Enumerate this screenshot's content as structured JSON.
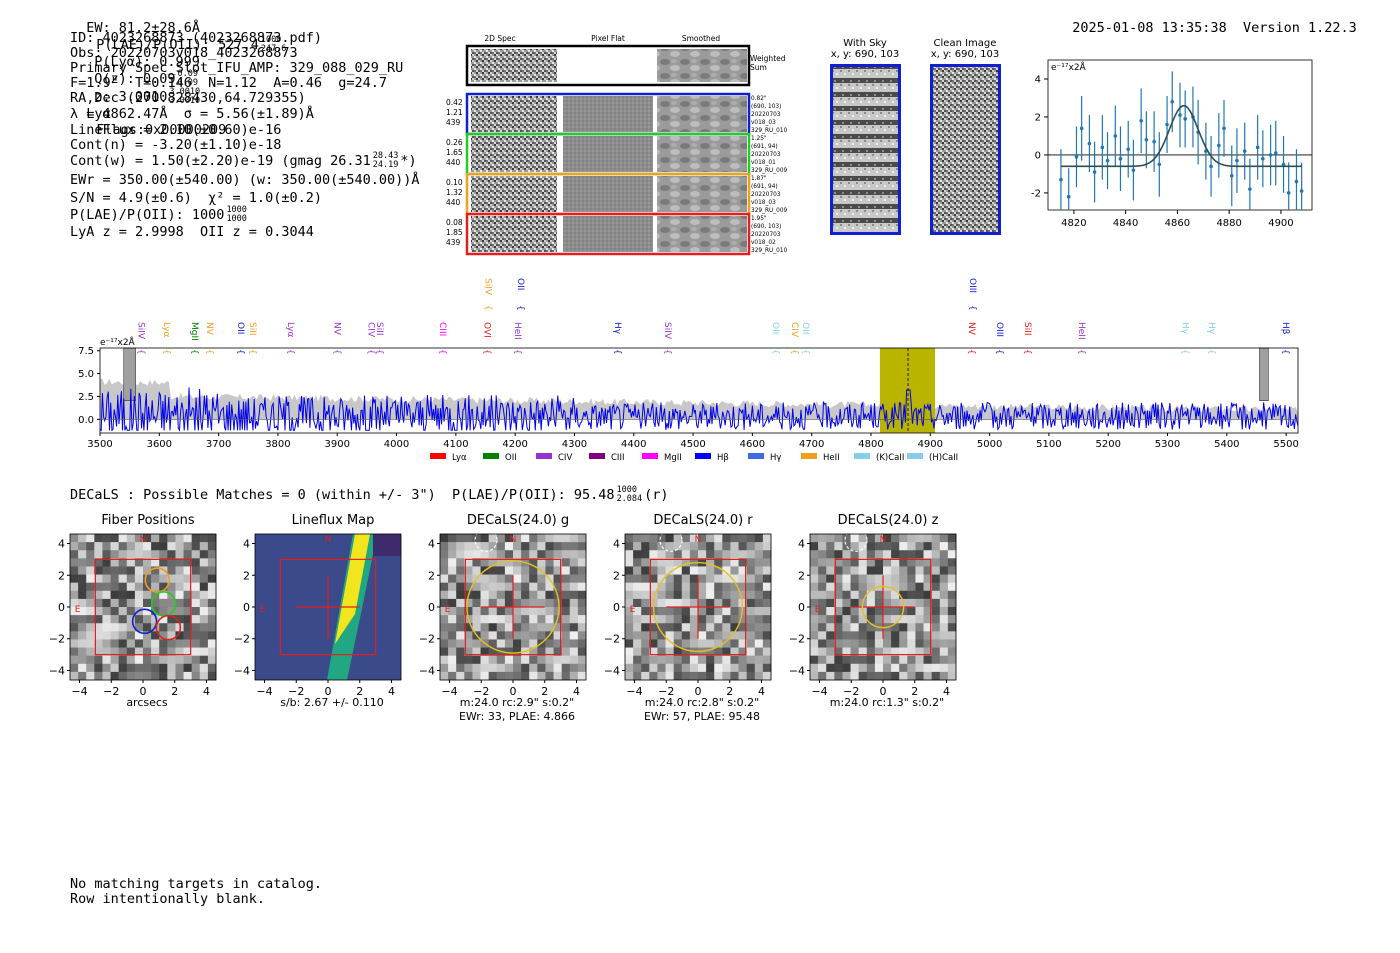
{
  "header": {
    "ew": "EW: 81.2±28.6Å",
    "plae_label": "P(LAE)/P(OII): 527.4",
    "plae_hi": "1000",
    "plae_lo": "247.6",
    "plya": "P(Lyα): 0.999",
    "qz_label": "Q(z): 0.09",
    "qz_hi": "0.09",
    "qz_lo": "0.09",
    "z_label": "z: 3.0010",
    "z_hi": "3.0010",
    "z_lo": "3.0010",
    "line_name": "Lyα",
    "flags": "Flags:0x00000209",
    "datetime": "2025-01-08 13:35:38",
    "version": "Version 1.22.3"
  },
  "info": {
    "id": "ID: 4023268873 (4023268873.pdf)",
    "obs": "Obs: 20220703v018_4023268873",
    "primary": "Primary Spec_Slot_IFU_AMP: 329_088_029_RU",
    "params": "F=1.9\"  T=0.146  N=1.12  A=0.46  g=24.7",
    "radec": "RA,Dec (270.828430,64.729355)",
    "lambda": "λ = 4862.47Å  σ = 5.56(±1.89)Å",
    "lineflux": "LineFlux = 2.10(±0.60)e-16",
    "contn": "Cont(n) = -3.20(±1.10)e-18",
    "contw_label": "Cont(w) = 1.50(±2.20)e-19 (gmag 26.31",
    "contw_hi": "28.43",
    "contw_lo": "24.19",
    "contw_end": "*)",
    "ewr": "EWr = 350.00(±540.00) (w: 350.00(±540.00))Å",
    "sn": "S/N = 4.9(±0.6)  χ² = 1.0(±0.2)",
    "plae_label": "P(LAE)/P(OII): 1000",
    "plae_hi": "1000",
    "plae_lo": "1000",
    "lyaz": "LyA z = 2.9998  OII z = 0.3044"
  },
  "cutouts": {
    "col_titles": [
      "2D Spec",
      "Pixel Flat",
      "Smoothed"
    ],
    "weighted_sum": [
      "Weighted",
      "Sum"
    ],
    "rows": [
      {
        "color": "#1020d0",
        "left": [
          "0.42",
          "1.21",
          "439"
        ],
        "right": [
          "0.82\"",
          "(690, 103)",
          "20220703",
          "v018_03",
          "329_RU_010"
        ]
      },
      {
        "color": "#22cc22",
        "left": [
          "0.26",
          "1.65",
          "440"
        ],
        "right": [
          "1.25\"",
          "(691, 94)",
          "20220703",
          "v018_01",
          "329_RU_009"
        ]
      },
      {
        "color": "#f0a020",
        "left": [
          "0.10",
          "1.32",
          "440"
        ],
        "right": [
          "1.87\"",
          "(691, 94)",
          "20220703",
          "v018_03",
          "329_RU_009"
        ]
      },
      {
        "color": "#e02020",
        "left": [
          "0.08",
          "1.85",
          "439"
        ],
        "right": [
          "1.95\"",
          "(690, 103)",
          "20220703",
          "v018_02",
          "329_RU_010"
        ]
      }
    ],
    "with_sky_title": "With Sky",
    "with_sky_xy": "x, y: 690, 103",
    "clean_title": "Clean Image",
    "clean_xy": "x, y: 690, 103"
  },
  "chart_data": [
    {
      "type": "scatter",
      "name": "line-fit-zoom",
      "unit_label": "e⁻¹⁷x2Å",
      "xlim": [
        4810,
        4912
      ],
      "ylim": [
        -2.9,
        5.0
      ],
      "xticks": [
        4820,
        4840,
        4860,
        4880,
        4900
      ],
      "yticks": [
        -2,
        0,
        2,
        4
      ],
      "x": [
        4815,
        4818,
        4821,
        4823,
        4826,
        4828,
        4831,
        4833,
        4836,
        4838,
        4841,
        4843,
        4846,
        4848,
        4851,
        4853,
        4856,
        4858,
        4861,
        4863,
        4866,
        4868,
        4871,
        4873,
        4876,
        4878,
        4881,
        4883,
        4886,
        4888,
        4891,
        4893,
        4896,
        4898,
        4901,
        4903,
        4906,
        4908
      ],
      "y": [
        -1.3,
        -2.2,
        -0.1,
        1.4,
        0.6,
        -0.9,
        0.4,
        -0.3,
        1.0,
        -0.2,
        0.3,
        -0.8,
        1.8,
        0.8,
        0.7,
        -0.5,
        1.6,
        2.8,
        2.1,
        1.9,
        2.0,
        1.2,
        0.2,
        -0.6,
        0.5,
        1.4,
        -1.1,
        -0.3,
        0.2,
        -1.8,
        0.4,
        -0.2,
        0.0,
        0.1,
        -0.5,
        -2.0,
        -1.4,
        -1.9
      ],
      "yerr": [
        1.6,
        1.5,
        1.6,
        1.7,
        1.5,
        1.6,
        1.7,
        1.5,
        1.6,
        1.7,
        1.5,
        1.6,
        1.7,
        1.5,
        1.6,
        1.7,
        1.5,
        1.6,
        1.7,
        1.5,
        1.6,
        1.7,
        1.5,
        1.6,
        1.7,
        1.5,
        1.6,
        1.7,
        1.5,
        1.6,
        1.7,
        1.5,
        1.6,
        1.7,
        1.5,
        1.6,
        1.7,
        1.5
      ],
      "fit": {
        "center": 4862.47,
        "sigma": 5.56,
        "amplitude": 3.2,
        "baseline": -0.6
      }
    },
    {
      "type": "line",
      "name": "full-spectrum",
      "unit_label": "e⁻¹⁷x2Å",
      "xlim": [
        3500,
        5520
      ],
      "ylim": [
        -1.5,
        7.8
      ],
      "xticks": [
        3500,
        3600,
        3700,
        3800,
        3900,
        4000,
        4100,
        4200,
        4300,
        4400,
        4500,
        4600,
        4700,
        4800,
        4900,
        5000,
        5100,
        5200,
        5300,
        5400,
        5500
      ],
      "yticks": [
        0.0,
        2.5,
        5.0,
        7.5
      ],
      "highlight_range": [
        4815,
        4908
      ],
      "marker_line": 4862.47,
      "bad_bands": [
        [
          3540,
          3560
        ],
        [
          5455,
          5470
        ]
      ],
      "line_labels": [
        {
          "x": 3560,
          "label": "SiIV",
          "color": "#9932cc"
        },
        {
          "x": 3603,
          "label": "Lyα",
          "color": "#f0a020"
        },
        {
          "x": 3650,
          "label": "MgII",
          "color": "#008000"
        },
        {
          "x": 3675,
          "label": "NV",
          "color": "#f0a020"
        },
        {
          "x": 3728,
          "label": "OII",
          "color": "#1020d0"
        },
        {
          "x": 3748,
          "label": "SiII",
          "color": "#f0a020"
        },
        {
          "x": 3812,
          "label": "Lyα",
          "color": "#9932cc"
        },
        {
          "x": 3890,
          "label": "NV",
          "color": "#9932cc"
        },
        {
          "x": 3948,
          "label": "CIV",
          "color": "#9932cc"
        },
        {
          "x": 3962,
          "label": "SiII",
          "color": "#9932cc"
        },
        {
          "x": 4068,
          "label": "CIII",
          "color": "#ff00ff"
        },
        {
          "x": 4143,
          "label": "OVI",
          "color": "#e02020"
        },
        {
          "x": 4195,
          "label": "HeII",
          "color": "#9932cc"
        },
        {
          "x": 4363,
          "label": "Hγ",
          "color": "#1020d0"
        },
        {
          "x": 4448,
          "label": "SiIV",
          "color": "#9932cc"
        },
        {
          "x": 4630,
          "label": "OII",
          "color": "#87ceeb"
        },
        {
          "x": 4662,
          "label": "CIV",
          "color": "#f0a020"
        },
        {
          "x": 4680,
          "label": "OII",
          "color": "#87ceeb"
        },
        {
          "x": 4960,
          "label": "NV",
          "color": "#e02020"
        },
        {
          "x": 5007,
          "label": "OIII",
          "color": "#1020d0"
        },
        {
          "x": 5055,
          "label": "SiII",
          "color": "#e02020"
        },
        {
          "x": 5146,
          "label": "HeII",
          "color": "#9932cc"
        },
        {
          "x": 5320,
          "label": "Hγ",
          "color": "#87ceeb"
        },
        {
          "x": 5365,
          "label": "Hγ",
          "color": "#87ceeb"
        },
        {
          "x": 5490,
          "label": "Hβ",
          "color": "#1020d0"
        },
        {
          "x": 4145,
          "label": "SiIV",
          "color": "#f0a020",
          "upper": true
        },
        {
          "x": 4200,
          "label": "OII",
          "color": "#1020d0",
          "upper": true
        },
        {
          "x": 4962,
          "label": "OIII",
          "color": "#1020d0",
          "upper": true
        }
      ],
      "legend": [
        {
          "label": "Lyα",
          "color": "#ff0000"
        },
        {
          "label": "OII",
          "color": "#008000"
        },
        {
          "label": "CIV",
          "color": "#9932cc"
        },
        {
          "label": "CIII",
          "color": "#800080"
        },
        {
          "label": "MgII",
          "color": "#ff00ff"
        },
        {
          "label": "Hβ",
          "color": "#0000ff"
        },
        {
          "label": "Hγ",
          "color": "#4169e1"
        },
        {
          "label": "HeII",
          "color": "#f0a020"
        },
        {
          "label": "(K)CaII",
          "color": "#87ceeb"
        },
        {
          "label": "(H)CaII",
          "color": "#87ceeb"
        }
      ]
    }
  ],
  "decals": {
    "summary_label": "DECaLS : Possible Matches = 0 (within +/- 3\")  P(LAE)/P(OII): 95.48",
    "summary_hi": "1000",
    "summary_lo": "2.084",
    "summary_band": "(r)",
    "axis_ticks": [
      "4",
      "2",
      "0",
      "−2",
      "−4"
    ],
    "xticks": [
      "−4",
      "−2",
      "0",
      "2",
      "4"
    ],
    "north": "N",
    "east": "E",
    "panels": [
      {
        "title": "Fiber Positions",
        "caption": [
          "arcsecs"
        ]
      },
      {
        "title": "Lineflux Map",
        "caption": [
          "s/b: 2.67 +/- 0.110"
        ]
      },
      {
        "title": "DECaLS(24.0) g",
        "caption": [
          "m:24.0 rc:2.9\"  s:0.2\"",
          "EWr: 33, PLAE: 4.866"
        ]
      },
      {
        "title": "DECaLS(24.0) r",
        "caption": [
          "m:24.0 rc:2.8\"  s:0.2\"",
          "EWr: 57, PLAE: 95.48"
        ]
      },
      {
        "title": "DECaLS(24.0) z",
        "caption": [
          "m:24.0 rc:1.3\"  s:0.2\""
        ]
      }
    ]
  },
  "footer": {
    "line1": "No matching targets in catalog.",
    "line2": "Row intentionally blank."
  }
}
